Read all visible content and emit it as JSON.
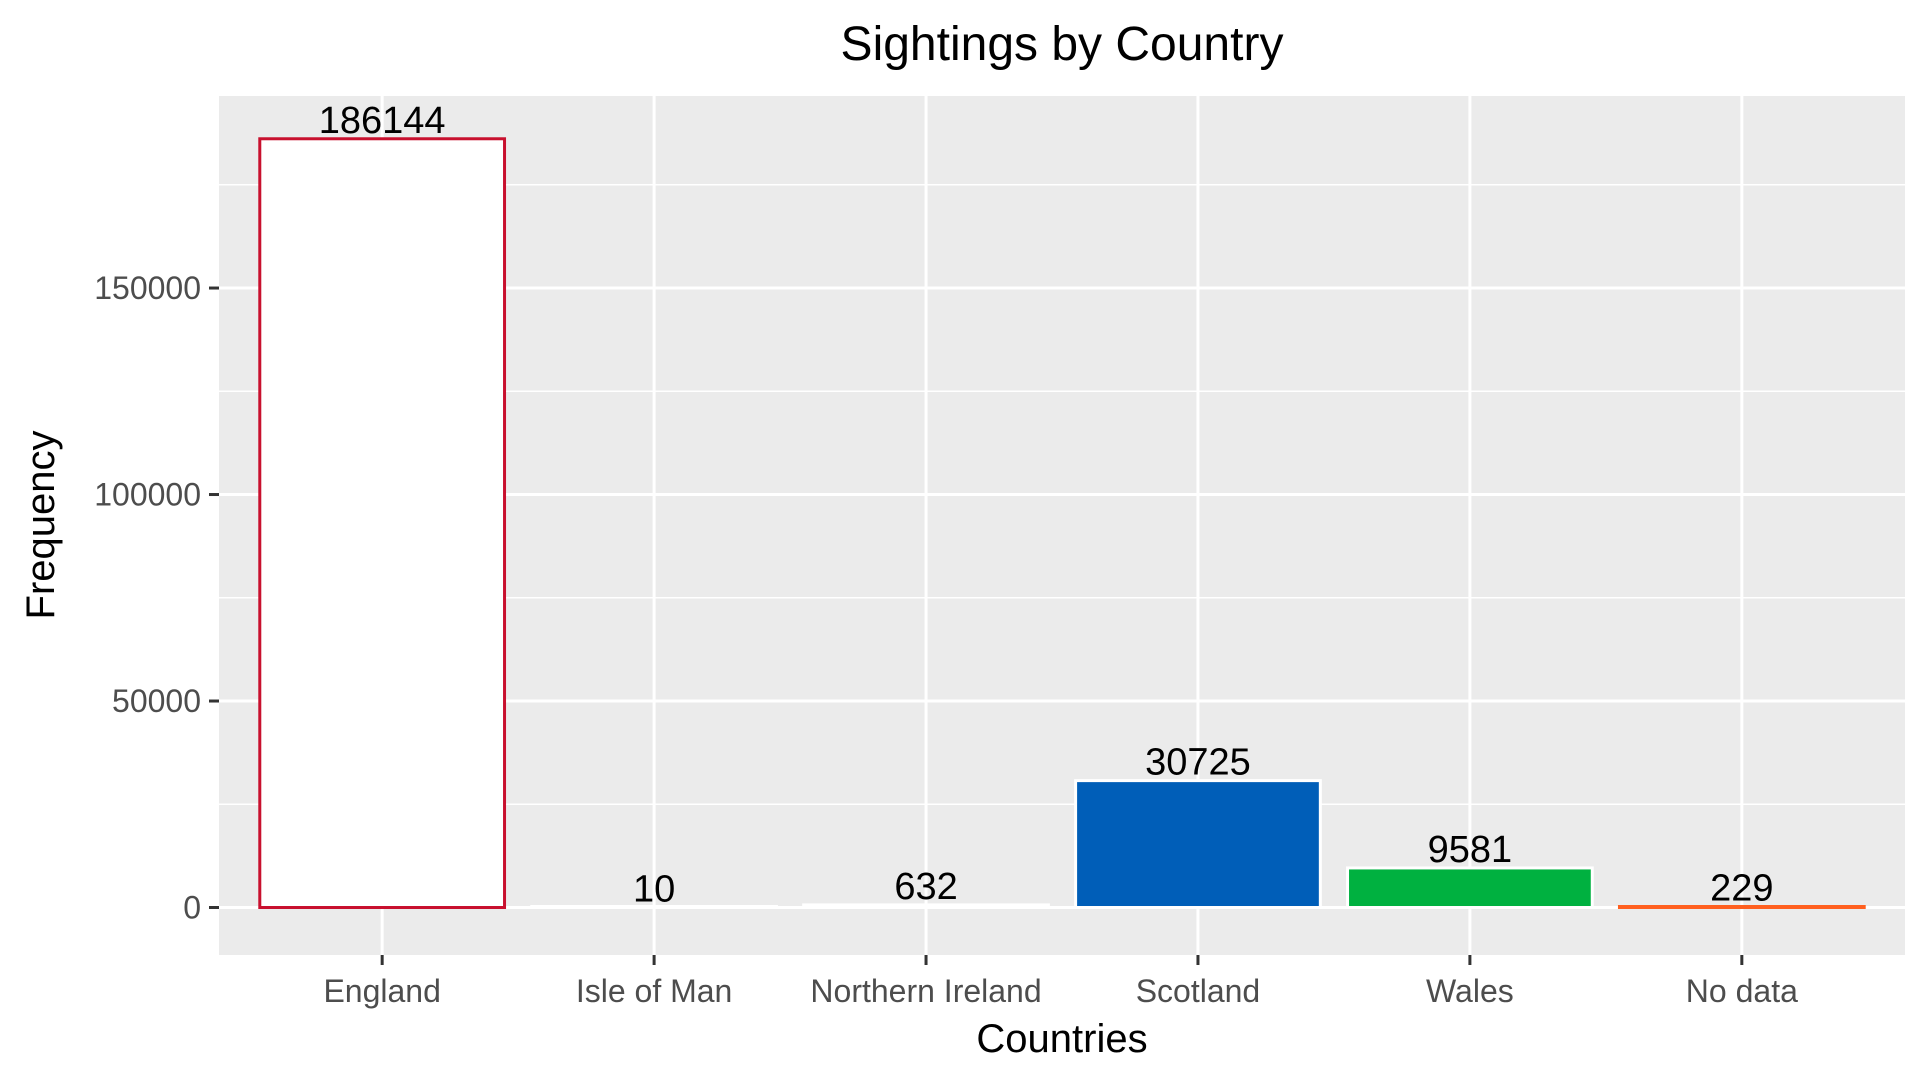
{
  "chart_data": {
    "type": "bar",
    "title": "Sightings by Country",
    "xlabel": "Countries",
    "ylabel": "Frequency",
    "categories": [
      "England",
      "Isle of Man",
      "Northern Ireland",
      "Scotland",
      "Wales",
      "No data"
    ],
    "values": [
      186144,
      10,
      632,
      30725,
      9581,
      229
    ],
    "data_labels": [
      "186144",
      "10",
      "632",
      "30725",
      "9581",
      "229"
    ],
    "ylim": [
      -11500,
      196500
    ],
    "yticks": [
      0,
      50000,
      100000,
      150000
    ],
    "ytick_labels": [
      "0",
      "50000",
      "100000",
      "150000"
    ],
    "grid": true,
    "legend": "none",
    "colors": {
      "panel_background": "#EBEBEB",
      "grid": "#FFFFFF",
      "bar_fills": [
        "#FFFFFF",
        "#FFFFFF",
        "#FFFFFF",
        "#005EB8",
        "#00B140",
        "#FF5F1F"
      ],
      "bar_outlines": [
        "#C8102E",
        "#FFFFFF",
        "#FFFFFF",
        "#FFFFFF",
        "#FFFFFF",
        "#FF5F1F"
      ]
    }
  }
}
